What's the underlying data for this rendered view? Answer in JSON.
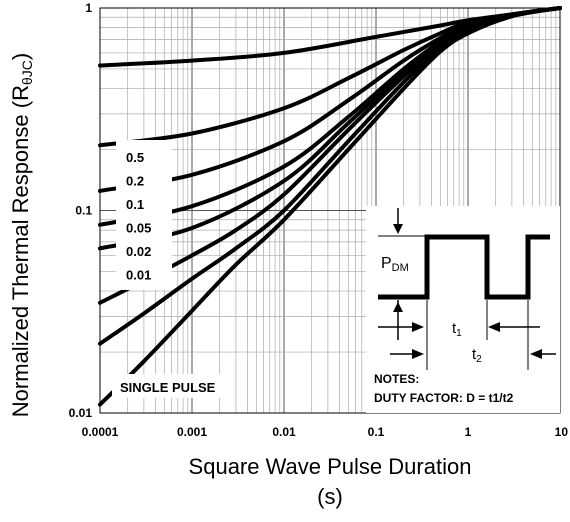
{
  "chart_data": {
    "type": "line",
    "x_scale": "log",
    "y_scale": "log",
    "xlim": [
      0.0001,
      10
    ],
    "ylim": [
      0.01,
      1
    ],
    "xlabel_line1": "Square Wave Pulse Duration",
    "xlabel_line2": "(s)",
    "ylabel": "Normalized Thermal Response (R",
    "ylabel_sub": "θJC",
    "ylabel_close": ")",
    "x_ticks": [
      {
        "value": 0.0001,
        "label": "0.0001"
      },
      {
        "value": 0.001,
        "label": "0.001"
      },
      {
        "value": 0.01,
        "label": "0.01"
      },
      {
        "value": 0.1,
        "label": "0.1"
      },
      {
        "value": 1,
        "label": "1"
      },
      {
        "value": 10,
        "label": "10"
      }
    ],
    "y_ticks": [
      {
        "value": 1,
        "label": "1"
      },
      {
        "value": 0.1,
        "label": "0.1"
      },
      {
        "value": 0.01,
        "label": "0.01"
      }
    ],
    "grid": true,
    "legend_labels": [
      "0.5",
      "0.2",
      "0.1",
      "0.05",
      "0.02",
      "0.01"
    ],
    "single_pulse_label": "SINGLE PULSE",
    "series": [
      {
        "name": "0.5",
        "x": [
          0.0001,
          0.001,
          0.01,
          0.1,
          0.5,
          1,
          3,
          10
        ],
        "y": [
          0.52,
          0.55,
          0.6,
          0.72,
          0.82,
          0.87,
          0.93,
          1.0
        ]
      },
      {
        "name": "0.2",
        "x": [
          0.0001,
          0.001,
          0.01,
          0.05,
          0.2,
          0.5,
          1,
          3,
          10
        ],
        "y": [
          0.21,
          0.24,
          0.32,
          0.45,
          0.62,
          0.75,
          0.85,
          0.93,
          1.0
        ]
      },
      {
        "name": "0.1",
        "x": [
          0.0001,
          0.001,
          0.01,
          0.05,
          0.2,
          0.5,
          1,
          3,
          10
        ],
        "y": [
          0.125,
          0.15,
          0.22,
          0.35,
          0.55,
          0.71,
          0.83,
          0.93,
          1.0
        ]
      },
      {
        "name": "0.05",
        "x": [
          0.0001,
          0.001,
          0.01,
          0.05,
          0.2,
          0.5,
          1,
          3,
          10
        ],
        "y": [
          0.085,
          0.105,
          0.165,
          0.29,
          0.5,
          0.68,
          0.8,
          0.92,
          1.0
        ]
      },
      {
        "name": "0.02",
        "x": [
          0.0001,
          0.001,
          0.01,
          0.05,
          0.2,
          0.5,
          1,
          3,
          10
        ],
        "y": [
          0.065,
          0.082,
          0.14,
          0.27,
          0.48,
          0.66,
          0.79,
          0.92,
          1.0
        ]
      },
      {
        "name": "0.01",
        "x": [
          0.0001,
          0.0003,
          0.001,
          0.003,
          0.01,
          0.05,
          0.2,
          0.5,
          1,
          3,
          10
        ],
        "y": [
          0.035,
          0.045,
          0.06,
          0.08,
          0.12,
          0.25,
          0.46,
          0.65,
          0.78,
          0.92,
          1.0
        ]
      },
      {
        "name": "SINGLE PULSE",
        "x": [
          0.0001,
          0.0003,
          0.001,
          0.003,
          0.01,
          0.05,
          0.2,
          0.5,
          1,
          3,
          10
        ],
        "y": [
          0.022,
          0.031,
          0.046,
          0.065,
          0.1,
          0.22,
          0.43,
          0.63,
          0.77,
          0.92,
          1.0
        ]
      },
      {
        "name": "",
        "x": [
          0.0001,
          0.0003,
          0.001,
          0.003,
          0.01,
          0.05,
          0.2,
          0.5,
          1,
          3,
          10
        ],
        "y": [
          0.011,
          0.018,
          0.032,
          0.054,
          0.09,
          0.2,
          0.4,
          0.61,
          0.75,
          0.91,
          1.0
        ]
      }
    ],
    "inset": {
      "p_label": "P",
      "p_sub": "DM",
      "t1_label": "t",
      "t1_sub": "1",
      "t2_label": "t",
      "t2_sub": "2",
      "notes_title": "NOTES:",
      "notes_text": "DUTY FACTOR: D = t1/t2"
    }
  }
}
